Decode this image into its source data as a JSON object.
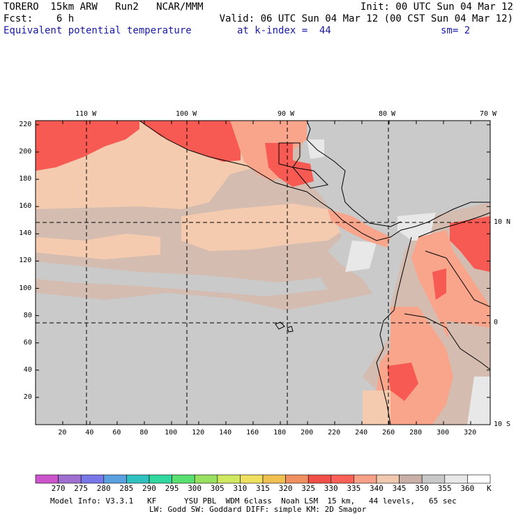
{
  "header": {
    "model": "TORERO  15km ARW   Run2   NCAR/MMM",
    "init": "Init: 00 UTC Sun 04 Mar 12",
    "fcst": "Fcst:    6 h",
    "valid": "Valid: 06 UTC Sun 04 Mar 12 (00 CST Sun 04 Mar 12)",
    "field": "Equivalent potential temperature",
    "level": "at k-index =  44",
    "smooth": "sm= 2"
  },
  "axes": {
    "lon_labels": [
      "110 W",
      "100 W",
      "90 W",
      "80 W",
      "70 W"
    ],
    "lat_labels": [
      "10 N",
      "0",
      "10 S"
    ],
    "x_ticks": [
      "20",
      "40",
      "60",
      "80",
      "100",
      "120",
      "140",
      "160",
      "180",
      "200",
      "220",
      "240",
      "260",
      "280",
      "300",
      "320"
    ],
    "y_ticks": [
      "220",
      "200",
      "180",
      "160",
      "140",
      "120",
      "100",
      "80",
      "60",
      "40",
      "20"
    ]
  },
  "colorbar": {
    "labels": [
      "270",
      "275",
      "280",
      "285",
      "290",
      "295",
      "300",
      "305",
      "310",
      "315",
      "320",
      "325",
      "330",
      "335",
      "340",
      "345",
      "350",
      "355",
      "360"
    ],
    "unit": "K",
    "colors": [
      "#cc55cc",
      "#a070d0",
      "#7878e8",
      "#5aa0e0",
      "#30c0c0",
      "#30d8a0",
      "#58e070",
      "#98e060",
      "#d0e860",
      "#f0e060",
      "#f0c050",
      "#f09060",
      "#f05048",
      "#f86058",
      "#f8a088",
      "#f0c8b0",
      "#c8b0a8",
      "#c8c8c8",
      "#e8e8e8",
      "#ffffff"
    ]
  },
  "map_colors": {
    "hot": "#f65a52",
    "warm": "#f8a58c",
    "light": "#f5cbb0",
    "tan": "#d4bcb0",
    "gray": "#cacaca",
    "pale": "#e8e8e8"
  },
  "footer": {
    "line1": "Model Info: V3.3.1   KF      YSU PBL  WDM 6class  Noah LSM  15 km,   44 levels,   65 sec",
    "line2": "LW: Godd SW: Goddard DIFF: simple KM: 2D Smagor"
  }
}
